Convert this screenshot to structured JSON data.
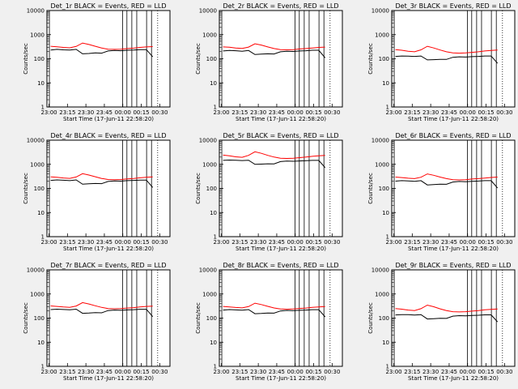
{
  "colors": {
    "background": "#f0f0f0",
    "plot_area": "#ffffff",
    "events": "#000000",
    "lld": "#ff0000"
  },
  "chart_data": [
    {
      "type": "line",
      "title": "Det_1r BLACK = Events, RED = LLD",
      "xlabel": "Start Time (17-Jun-11 22:58:20)",
      "ylabel": "Counts/sec",
      "xticklabels": [
        "23:00",
        "23:15",
        "23:30",
        "23:45",
        "00:00",
        "00:15",
        "00:30"
      ],
      "yticklabels": [
        "1",
        "10",
        "100",
        "1000",
        "10000"
      ],
      "yscale": "log",
      "ylim": [
        1,
        10000
      ],
      "xlim": [
        "22:58:20",
        "00:38:20"
      ],
      "series": [
        {
          "name": "Events",
          "color": "#000000",
          "values": [
            230,
            245,
            235,
            230,
            245,
            160,
            165,
            175,
            170,
            210,
            220,
            215,
            225,
            230,
            240,
            240,
            120
          ]
        },
        {
          "name": "LLD",
          "color": "#ff0000",
          "values": [
            330,
            315,
            295,
            285,
            325,
            450,
            390,
            330,
            280,
            250,
            245,
            250,
            265,
            275,
            295,
            310,
            320
          ]
        }
      ]
    },
    {
      "type": "line",
      "title": "Det_2r BLACK = Events, RED = LLD",
      "xlabel": "Start Time (17-Jun-11 22:58:20)",
      "ylabel": "Counts/sec",
      "xticklabels": [
        "23:00",
        "23:15",
        "23:30",
        "23:45",
        "00:00",
        "00:15",
        "00:30"
      ],
      "yticklabels": [
        "1",
        "10",
        "100",
        "1000",
        "10000"
      ],
      "yscale": "log",
      "ylim": [
        1,
        10000
      ],
      "xlim": [
        "22:58:20",
        "00:38:20"
      ],
      "series": [
        {
          "name": "Events",
          "color": "#000000",
          "values": [
            210,
            220,
            215,
            205,
            220,
            150,
            155,
            160,
            158,
            195,
            205,
            200,
            210,
            215,
            225,
            225,
            110
          ]
        },
        {
          "name": "LLD",
          "color": "#ff0000",
          "values": [
            310,
            300,
            280,
            270,
            305,
            420,
            370,
            310,
            265,
            240,
            235,
            240,
            255,
            265,
            280,
            295,
            305
          ]
        }
      ]
    },
    {
      "type": "line",
      "title": "Det_3r BLACK = Events, RED = LLD",
      "xlabel": "Start Time (17-Jun-11 22:58:20)",
      "ylabel": "Counts/sec",
      "xticklabels": [
        "23:00",
        "23:15",
        "23:30",
        "23:45",
        "00:00",
        "00:15",
        "00:30"
      ],
      "yticklabels": [
        "1",
        "10",
        "100",
        "1000",
        "10000"
      ],
      "yscale": "log",
      "ylim": [
        1,
        10000
      ],
      "xlim": [
        "22:58:20",
        "00:38:20"
      ],
      "series": [
        {
          "name": "Events",
          "color": "#000000",
          "values": [
            125,
            130,
            128,
            125,
            130,
            90,
            92,
            95,
            94,
            115,
            120,
            118,
            122,
            125,
            130,
            130,
            65
          ]
        },
        {
          "name": "LLD",
          "color": "#ff0000",
          "values": [
            240,
            225,
            205,
            195,
            235,
            330,
            280,
            230,
            195,
            175,
            170,
            175,
            185,
            195,
            210,
            220,
            230
          ]
        }
      ]
    },
    {
      "type": "line",
      "title": "Det_4r BLACK = Events, RED = LLD",
      "xlabel": "Start Time (17-Jun-11 22:58:20)",
      "ylabel": "Counts/sec",
      "xticklabels": [
        "23:00",
        "23:15",
        "23:30",
        "23:45",
        "00:00",
        "00:15",
        "00:30"
      ],
      "yticklabels": [
        "1",
        "10",
        "100",
        "1000",
        "10000"
      ],
      "yscale": "log",
      "ylim": [
        1,
        10000
      ],
      "xlim": [
        "22:58:20",
        "00:38:20"
      ],
      "series": [
        {
          "name": "Events",
          "color": "#000000",
          "values": [
            215,
            225,
            218,
            210,
            225,
            150,
            155,
            160,
            158,
            195,
            205,
            200,
            210,
            215,
            222,
            222,
            110
          ]
        },
        {
          "name": "LLD",
          "color": "#ff0000",
          "values": [
            300,
            290,
            272,
            262,
            298,
            410,
            360,
            305,
            260,
            235,
            230,
            235,
            250,
            260,
            275,
            290,
            300
          ]
        }
      ]
    },
    {
      "type": "line",
      "title": "Det_5r BLACK = Events, RED = LLD",
      "xlabel": "Start Time (17-Jun-11 22:58:20)",
      "ylabel": "Counts/sec",
      "xticklabels": [
        "23:00",
        "23:15",
        "23:30",
        "23:45",
        "00:00",
        "00:15",
        "00:30"
      ],
      "yticklabels": [
        "1",
        "10",
        "100",
        "1000",
        "10000"
      ],
      "yscale": "log",
      "ylim": [
        1,
        10000
      ],
      "xlim": [
        "22:58:20",
        "00:38:20"
      ],
      "series": [
        {
          "name": "Events",
          "color": "#000000",
          "values": [
            1450,
            1500,
            1470,
            1430,
            1480,
            1000,
            1020,
            1050,
            1040,
            1300,
            1360,
            1340,
            1380,
            1410,
            1450,
            1450,
            730
          ]
        },
        {
          "name": "LLD",
          "color": "#ff0000",
          "values": [
            2400,
            2250,
            2050,
            1950,
            2350,
            3300,
            2850,
            2350,
            2000,
            1800,
            1750,
            1800,
            1900,
            2000,
            2150,
            2250,
            2350
          ]
        }
      ]
    },
    {
      "type": "line",
      "title": "Det_6r BLACK = Events, RED = LLD",
      "xlabel": "Start Time (17-Jun-11 22:58:20)",
      "ylabel": "Counts/sec",
      "xticklabels": [
        "23:00",
        "23:15",
        "23:30",
        "23:45",
        "00:00",
        "00:15",
        "00:30"
      ],
      "yticklabels": [
        "1",
        "10",
        "100",
        "1000",
        "10000"
      ],
      "yscale": "log",
      "ylim": [
        1,
        10000
      ],
      "xlim": [
        "22:58:20",
        "00:38:20"
      ],
      "series": [
        {
          "name": "Events",
          "color": "#000000",
          "values": [
            200,
            210,
            205,
            198,
            210,
            140,
            145,
            150,
            148,
            185,
            195,
            190,
            198,
            203,
            210,
            210,
            105
          ]
        },
        {
          "name": "LLD",
          "color": "#ff0000",
          "values": [
            295,
            282,
            265,
            255,
            292,
            400,
            350,
            295,
            255,
            230,
            225,
            230,
            245,
            255,
            270,
            285,
            295
          ]
        }
      ]
    },
    {
      "type": "line",
      "title": "Det_7r BLACK = Events, RED = LLD",
      "xlabel": "Start Time (17-Jun-11 22:58:20)",
      "ylabel": "Counts/sec",
      "xticklabels": [
        "23:00",
        "23:15",
        "23:30",
        "23:45",
        "00:00",
        "00:15",
        "00:30"
      ],
      "yticklabels": [
        "1",
        "10",
        "100",
        "1000",
        "10000"
      ],
      "yscale": "log",
      "ylim": [
        1,
        10000
      ],
      "xlim": [
        "22:58:20",
        "00:38:20"
      ],
      "series": [
        {
          "name": "Events",
          "color": "#000000",
          "values": [
            225,
            235,
            228,
            220,
            235,
            158,
            162,
            168,
            166,
            205,
            215,
            210,
            218,
            224,
            232,
            232,
            115
          ]
        },
        {
          "name": "LLD",
          "color": "#ff0000",
          "values": [
            320,
            305,
            288,
            278,
            318,
            440,
            385,
            325,
            278,
            250,
            244,
            250,
            262,
            272,
            290,
            305,
            315
          ]
        }
      ]
    },
    {
      "type": "line",
      "title": "Det_8r BLACK = Events, RED = LLD",
      "xlabel": "Start Time (17-Jun-11 22:58:20)",
      "ylabel": "Counts/sec",
      "xticklabels": [
        "23:00",
        "23:15",
        "23:30",
        "23:45",
        "00:00",
        "00:15",
        "00:30"
      ],
      "yticklabels": [
        "1",
        "10",
        "100",
        "1000",
        "10000"
      ],
      "yscale": "log",
      "ylim": [
        1,
        10000
      ],
      "xlim": [
        "22:58:20",
        "00:38:20"
      ],
      "series": [
        {
          "name": "Events",
          "color": "#000000",
          "values": [
            215,
            225,
            218,
            212,
            226,
            152,
            156,
            162,
            160,
            198,
            208,
            202,
            210,
            216,
            224,
            224,
            112
          ]
        },
        {
          "name": "LLD",
          "color": "#ff0000",
          "values": [
            305,
            292,
            275,
            265,
            300,
            415,
            365,
            308,
            264,
            238,
            233,
            238,
            252,
            262,
            278,
            292,
            302
          ]
        }
      ]
    },
    {
      "type": "line",
      "title": "Det_9r BLACK = Events, RED = LLD",
      "xlabel": "Start Time (17-Jun-11 22:58:20)",
      "ylabel": "Counts/sec",
      "xticklabels": [
        "23:00",
        "23:15",
        "23:30",
        "23:45",
        "00:00",
        "00:15",
        "00:30"
      ],
      "yticklabels": [
        "1",
        "10",
        "100",
        "1000",
        "10000"
      ],
      "yscale": "log",
      "ylim": [
        1,
        10000
      ],
      "xlim": [
        "22:58:20",
        "00:38:20"
      ],
      "series": [
        {
          "name": "Events",
          "color": "#000000",
          "values": [
            135,
            140,
            138,
            134,
            140,
            92,
            95,
            98,
            97,
            120,
            126,
            123,
            128,
            131,
            136,
            136,
            70
          ]
        },
        {
          "name": "LLD",
          "color": "#ff0000",
          "values": [
            250,
            235,
            215,
            205,
            245,
            345,
            295,
            242,
            205,
            185,
            180,
            185,
            195,
            205,
            220,
            230,
            240
          ]
        }
      ]
    }
  ]
}
